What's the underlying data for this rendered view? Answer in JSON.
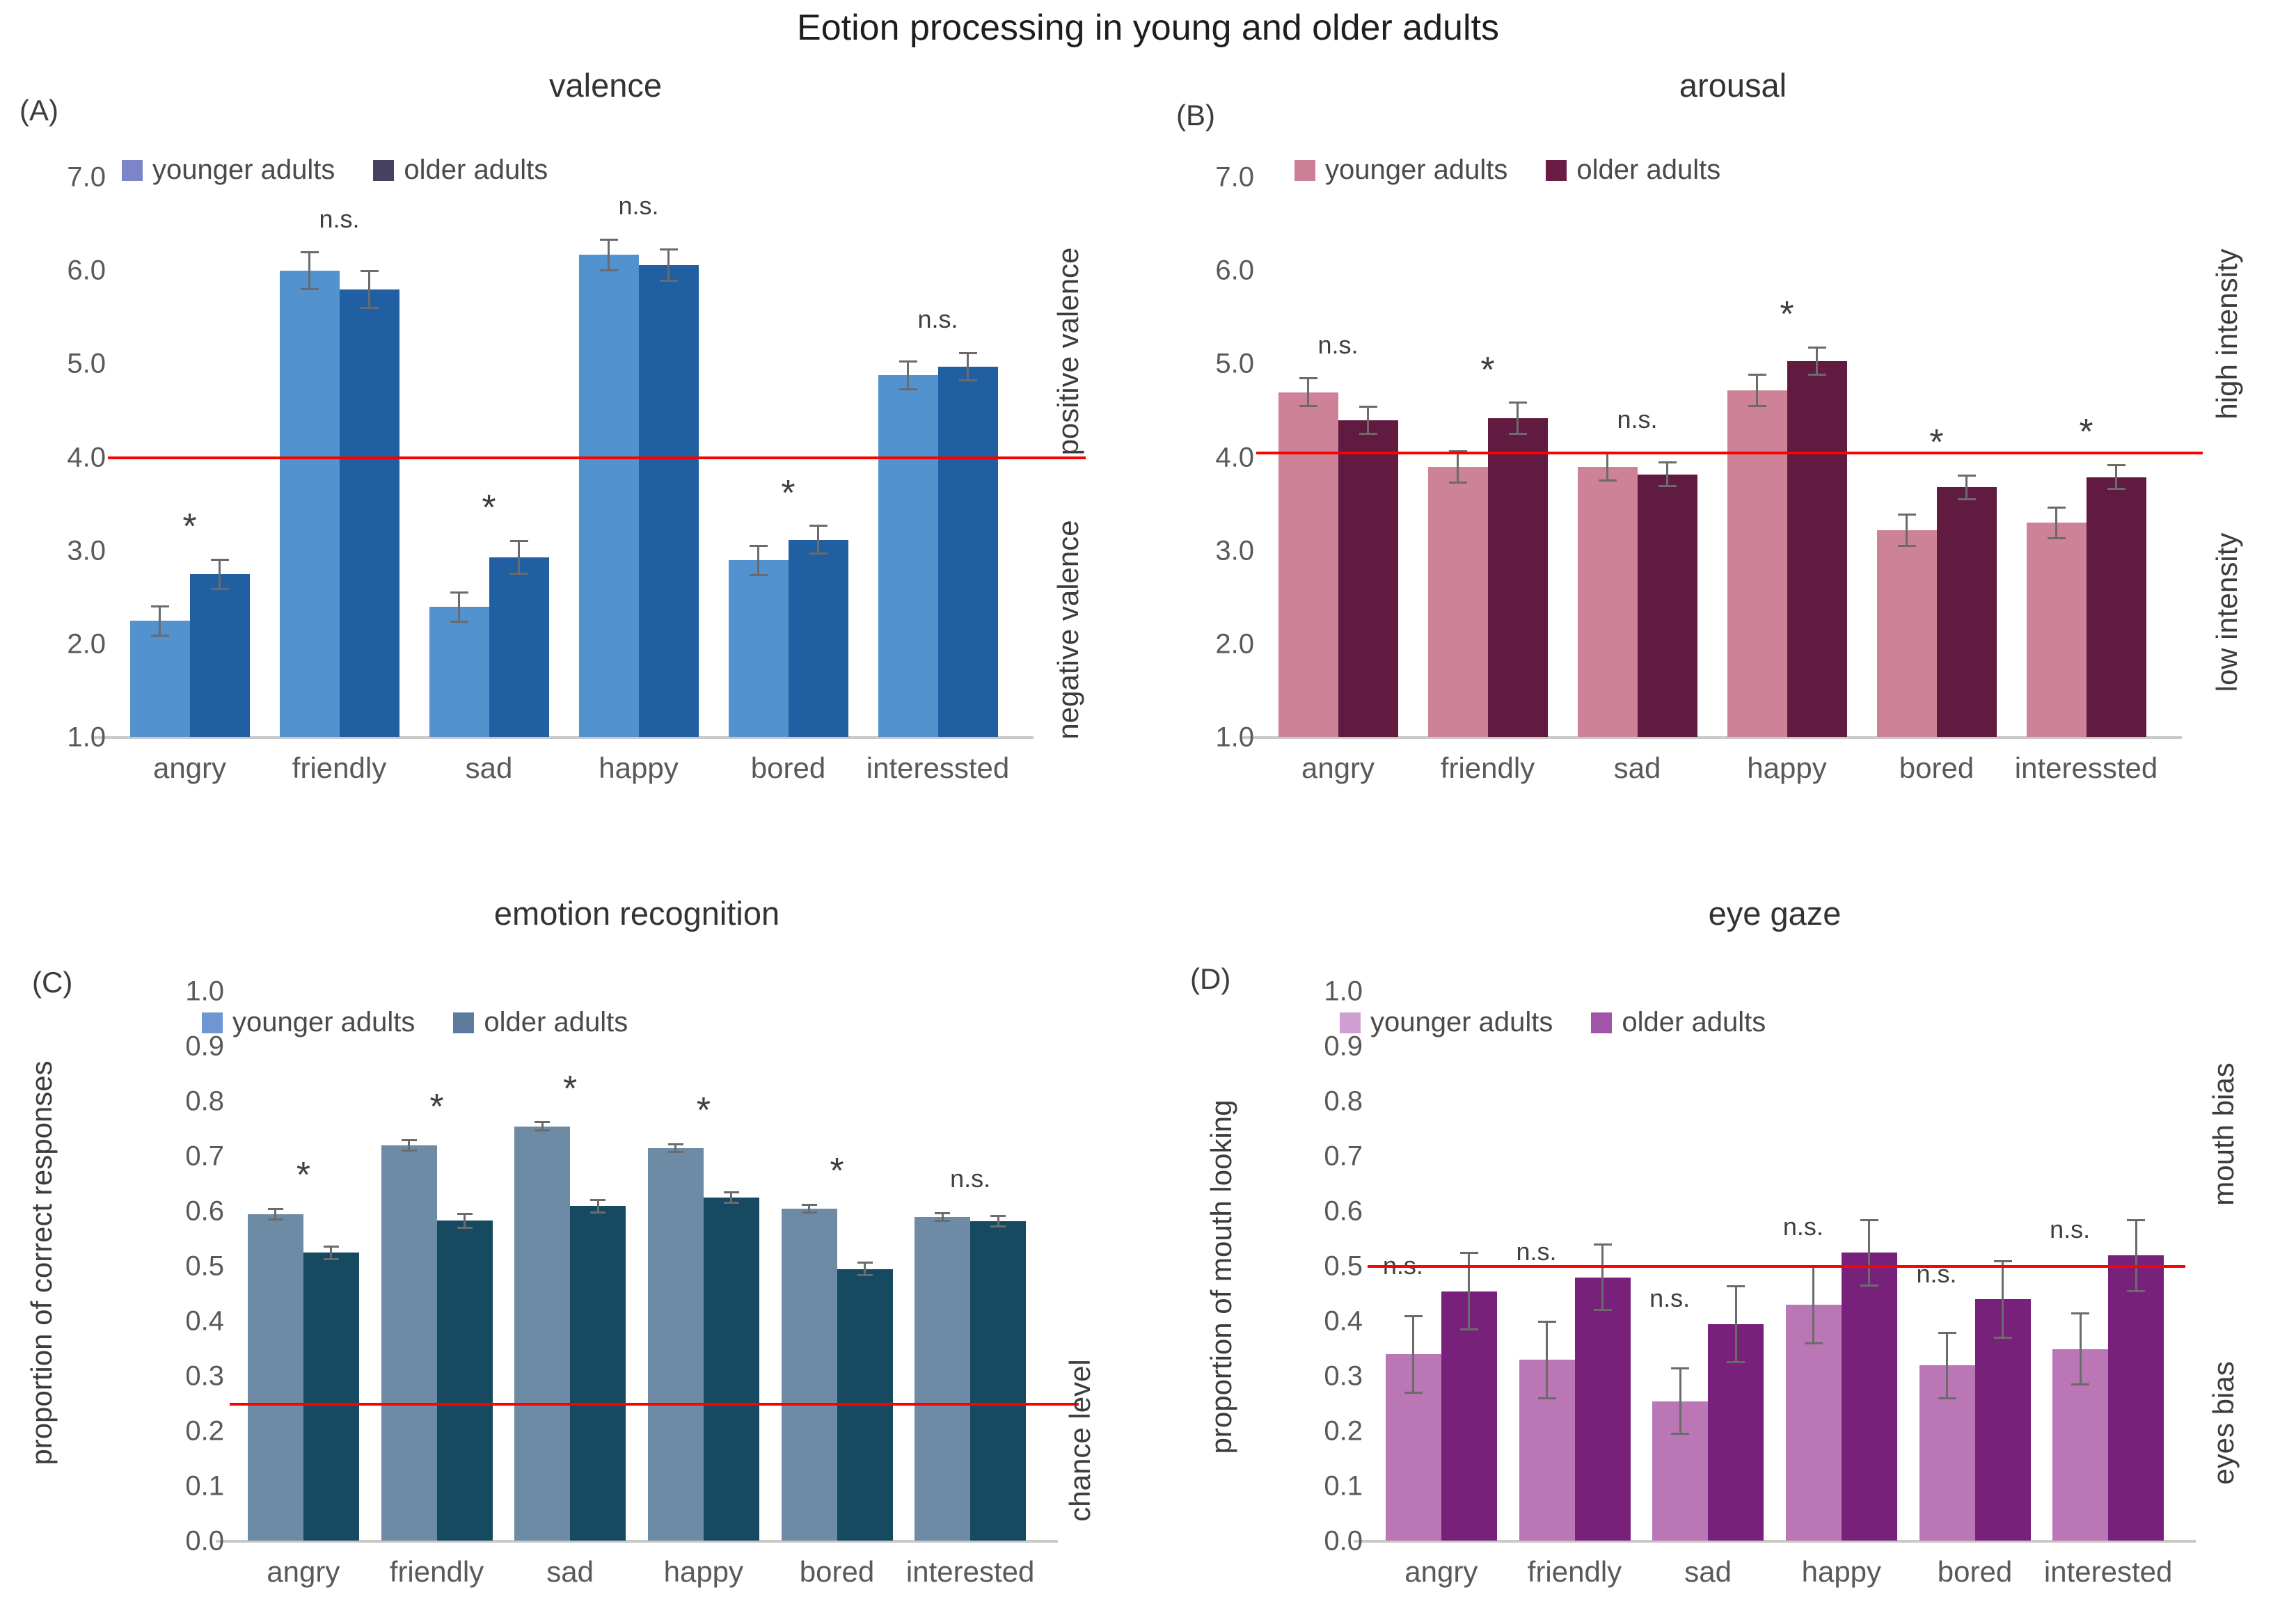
{
  "figure": {
    "title": "Eotion processing in young and older adults",
    "error_bar_color": "#6b6b6b",
    "axis_text_color": "#595959",
    "baseline_color": "#c9c9c9"
  },
  "chart_data": [
    {
      "id": "A",
      "type": "bar",
      "panel_label": "(A)",
      "title": "valence",
      "legend": [
        {
          "label": "younger adults",
          "color": "#7c86c6"
        },
        {
          "label": "older adults",
          "color": "#454160"
        }
      ],
      "bar_colors": [
        "#5192cf",
        "#1f5fa2"
      ],
      "categories": [
        "angry",
        "friendly",
        "sad",
        "happy",
        "bored",
        "interessted"
      ],
      "series": [
        {
          "name": "younger adults",
          "values": [
            2.25,
            6.0,
            2.4,
            6.17,
            2.9,
            4.88
          ],
          "errors": [
            0.16,
            0.2,
            0.16,
            0.17,
            0.16,
            0.15
          ]
        },
        {
          "name": "older adults",
          "values": [
            2.75,
            5.8,
            2.93,
            6.06,
            3.12,
            4.97
          ],
          "errors": [
            0.16,
            0.2,
            0.18,
            0.17,
            0.15,
            0.15
          ]
        }
      ],
      "significance": [
        "*",
        "n.s.",
        "*",
        "n.s.",
        "*",
        "n.s."
      ],
      "ylim": [
        1.0,
        7.0
      ],
      "yticks": [
        "7.0",
        "6.0",
        "5.0",
        "4.0",
        "3.0",
        "2.0",
        "1.0"
      ],
      "ref_line": {
        "value": 4.0,
        "color": "#ff0000"
      },
      "side_labels": [
        "positive valence",
        "negative valence"
      ],
      "ylabel": null,
      "legend_note": "grid off, legend top-left"
    },
    {
      "id": "B",
      "type": "bar",
      "panel_label": "(B)",
      "title": "arousal",
      "legend": [
        {
          "label": "younger adults",
          "color": "#ca7f97"
        },
        {
          "label": "older adults",
          "color": "#6b1c44"
        }
      ],
      "bar_colors": [
        "#cd8298",
        "#611a40"
      ],
      "categories": [
        "angry",
        "friendly",
        "sad",
        "happy",
        "bored",
        "interessted"
      ],
      "series": [
        {
          "name": "younger adults",
          "values": [
            4.7,
            3.9,
            3.9,
            4.72,
            3.22,
            3.3
          ],
          "errors": [
            0.15,
            0.17,
            0.15,
            0.17,
            0.17,
            0.17
          ]
        },
        {
          "name": "older adults",
          "values": [
            4.4,
            4.42,
            3.82,
            5.03,
            3.68,
            3.79
          ],
          "errors": [
            0.15,
            0.17,
            0.13,
            0.15,
            0.13,
            0.13
          ]
        }
      ],
      "significance": [
        "n.s.",
        "*",
        "n.s.",
        "*",
        "*",
        "*"
      ],
      "ylim": [
        1.0,
        7.0
      ],
      "yticks": [
        "7.0",
        "6.0",
        "5.0",
        "4.0",
        "3.0",
        "2.0",
        "1.0"
      ],
      "ref_line": {
        "value": 4.05,
        "color": "#ff0000"
      },
      "side_labels": [
        "high intensity",
        "low intensity"
      ],
      "ylabel": null,
      "legend_note": "grid off, legend top-left"
    },
    {
      "id": "C",
      "type": "bar",
      "panel_label": "(C)",
      "title": "emotion recognition",
      "legend": [
        {
          "label": "younger adults",
          "color": "#6f96d3"
        },
        {
          "label": "older adults",
          "color": "#5d7b9d"
        }
      ],
      "bar_colors": [
        "#6d8ba5",
        "#164a61"
      ],
      "categories": [
        "angry",
        "friendly",
        "sad",
        "happy",
        "bored",
        "interested"
      ],
      "series": [
        {
          "name": "younger adults",
          "values": [
            0.595,
            0.72,
            0.755,
            0.715,
            0.605,
            0.59
          ],
          "errors": [
            0.01,
            0.01,
            0.008,
            0.008,
            0.008,
            0.008
          ]
        },
        {
          "name": "older adults",
          "values": [
            0.525,
            0.583,
            0.61,
            0.625,
            0.495,
            0.582
          ],
          "errors": [
            0.012,
            0.013,
            0.012,
            0.01,
            0.012,
            0.01
          ]
        }
      ],
      "significance": [
        "*",
        "*",
        "*",
        "*",
        "*",
        "n.s."
      ],
      "ylim": [
        0.0,
        1.0
      ],
      "yticks": [
        "1.0",
        "0.9",
        "0.8",
        "0.7",
        "0.6",
        "0.5",
        "0.4",
        "0.3",
        "0.2",
        "0.1",
        "0.0"
      ],
      "ref_line": {
        "value": 0.25,
        "color": "#ff0000"
      },
      "side_labels": [
        "chance level"
      ],
      "ylabel": "proportion of correct responses",
      "legend_note": "grid off, legend top-left"
    },
    {
      "id": "D",
      "type": "bar",
      "panel_label": "(D)",
      "title": "eye gaze",
      "legend": [
        {
          "label": "younger adults",
          "color": "#d09fd2"
        },
        {
          "label": "older adults",
          "color": "#a155a8"
        }
      ],
      "bar_colors": [
        "#bb76b5",
        "#77217a"
      ],
      "categories": [
        "angry",
        "friendly",
        "sad",
        "happy",
        "bored",
        "interested"
      ],
      "series": [
        {
          "name": "younger adults",
          "values": [
            0.34,
            0.33,
            0.255,
            0.43,
            0.32,
            0.35
          ],
          "errors": [
            0.07,
            0.07,
            0.06,
            0.07,
            0.06,
            0.065
          ]
        },
        {
          "name": "older adults",
          "values": [
            0.455,
            0.48,
            0.395,
            0.525,
            0.44,
            0.52
          ],
          "errors": [
            0.07,
            0.06,
            0.07,
            0.06,
            0.07,
            0.065
          ]
        }
      ],
      "significance": [
        "n.s.",
        "n.s.",
        "n.s.",
        "n.s.",
        "n.s.",
        "n.s."
      ],
      "ylim": [
        0.0,
        1.0
      ],
      "yticks": [
        "1.0",
        "0.9",
        "0.8",
        "0.7",
        "0.6",
        "0.5",
        "0.4",
        "0.3",
        "0.2",
        "0.1",
        "0.0"
      ],
      "ref_line": {
        "value": 0.5,
        "color": "#ff0000"
      },
      "side_labels": [
        "mouth bias",
        "eyes bias"
      ],
      "ylabel": "proportion of mouth looking",
      "legend_note": "grid off, legend top-left"
    }
  ]
}
